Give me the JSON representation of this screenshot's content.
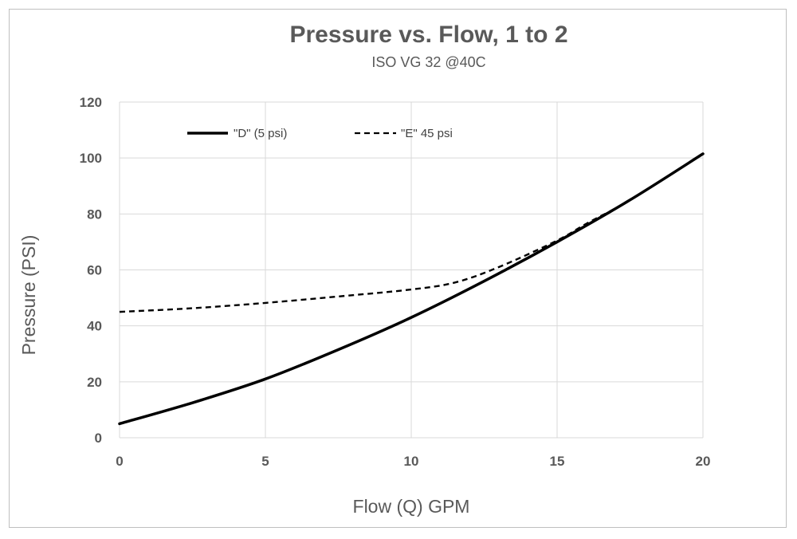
{
  "chart_data": {
    "type": "line",
    "title": "Pressure vs. Flow, 1 to 2",
    "subtitle": "ISO VG 32 @40C",
    "xlabel": "Flow (Q) GPM",
    "ylabel": "Pressure  (PSI)",
    "xlim": [
      0,
      20
    ],
    "ylim": [
      0,
      120
    ],
    "xticks": [
      "0",
      "5",
      "10",
      "15",
      "20"
    ],
    "yticks": [
      "0",
      "20",
      "40",
      "60",
      "80",
      "100",
      "120"
    ],
    "grid": true,
    "legend_position": "top-left",
    "series": [
      {
        "name": "\"D\" (5 psi)",
        "style": "solid",
        "color": "#000000",
        "x": [
          0,
          2.5,
          5,
          7.5,
          10,
          12.5,
          15,
          17.5,
          20
        ],
        "y": [
          5,
          12.5,
          21,
          31.5,
          43,
          56,
          70,
          85,
          101.5
        ]
      },
      {
        "name": "\"E\" 45 psi",
        "style": "dashed",
        "color": "#000000",
        "x": [
          0,
          2.5,
          5,
          7.5,
          10,
          11.5,
          13,
          15,
          16,
          17.5,
          20
        ],
        "y": [
          45,
          46.3,
          48.2,
          50.5,
          53,
          55.5,
          61,
          70.5,
          76.5,
          85,
          101.5
        ]
      }
    ]
  }
}
